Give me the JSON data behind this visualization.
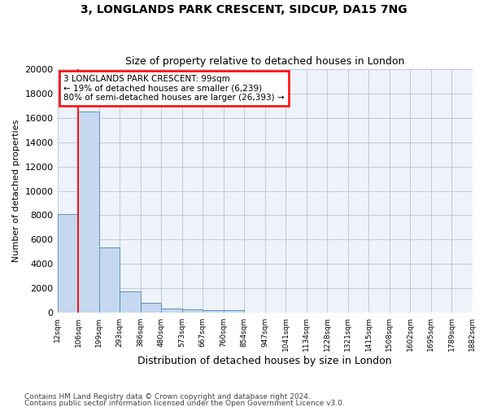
{
  "title": "3, LONGLANDS PARK CRESCENT, SIDCUP, DA15 7NG",
  "subtitle": "Size of property relative to detached houses in London",
  "xlabel": "Distribution of detached houses by size in London",
  "ylabel": "Number of detached properties",
  "bar_values": [
    8100,
    16500,
    5350,
    1750,
    800,
    380,
    270,
    230,
    200,
    0,
    0,
    0,
    0,
    0,
    0,
    0,
    0,
    0,
    0,
    0
  ],
  "bar_labels": [
    "12sqm",
    "106sqm",
    "199sqm",
    "293sqm",
    "386sqm",
    "480sqm",
    "573sqm",
    "667sqm",
    "760sqm",
    "854sqm",
    "947sqm",
    "1041sqm",
    "1134sqm",
    "1228sqm",
    "1321sqm",
    "1415sqm",
    "1508sqm",
    "1602sqm",
    "1695sqm",
    "1789sqm",
    "1882sqm"
  ],
  "bar_color": "#c5d8f0",
  "bar_edge_color": "#6090c0",
  "vline_x": 1,
  "vline_color": "red",
  "annotation_text": "3 LONGLANDS PARK CRESCENT: 99sqm\n← 19% of detached houses are smaller (6,239)\n80% of semi-detached houses are larger (26,393) →",
  "annotation_box_color": "white",
  "annotation_box_edge": "red",
  "ylim": [
    0,
    20000
  ],
  "yticks": [
    0,
    2000,
    4000,
    6000,
    8000,
    10000,
    12000,
    14000,
    16000,
    18000,
    20000
  ],
  "footer1": "Contains HM Land Registry data © Crown copyright and database right 2024.",
  "footer2": "Contains public sector information licensed under the Open Government Licence v3.0.",
  "bg_color": "#eef2fa",
  "grid_color": "#c0c8d8"
}
